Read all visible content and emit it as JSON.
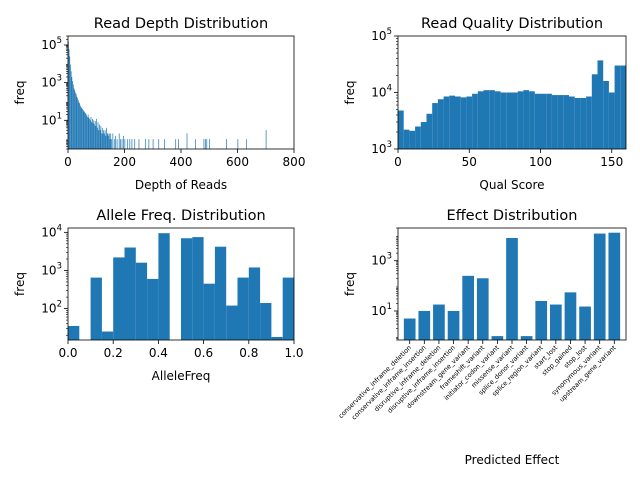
{
  "chart_data": [
    {
      "id": "depth",
      "type": "bar",
      "title": "Read Depth Distribution",
      "xlabel": "Depth of Reads",
      "ylabel": "freq",
      "xscale": "linear",
      "yscale": "log",
      "xlim": [
        0,
        800
      ],
      "ylim": [
        0.3,
        300000
      ],
      "xticks": [
        0,
        200,
        400,
        600,
        800
      ],
      "yticks": [
        10,
        1000,
        100000
      ],
      "color": "#1f77b4",
      "bin_width": 2.5,
      "x": [
        0,
        2.5,
        5,
        7.5,
        10,
        12.5,
        15,
        17.5,
        20,
        22.5,
        25,
        27.5,
        30,
        32.5,
        35,
        37.5,
        40,
        42.5,
        45,
        47.5,
        50,
        52.5,
        55,
        57.5,
        60,
        62.5,
        65,
        67.5,
        70,
        72.5,
        75,
        77.5,
        80,
        82.5,
        85,
        87.5,
        90,
        92.5,
        95,
        97.5,
        100,
        102.5,
        105,
        107.5,
        110,
        112.5,
        115,
        117.5,
        120,
        122.5,
        125,
        127.5,
        130,
        132.5,
        135,
        137.5,
        140,
        142.5,
        145,
        147.5,
        150,
        152.5,
        157.5,
        162.5,
        167.5,
        172.5,
        180,
        185,
        190,
        195,
        200,
        210,
        217.5,
        225,
        235,
        250,
        272.5,
        285,
        300,
        320,
        340,
        380,
        390,
        420,
        450,
        480,
        485,
        490,
        500,
        560,
        600,
        630,
        700
      ],
      "values": [
        150000,
        60000,
        25000,
        9000,
        4000,
        2000,
        1200,
        800,
        500,
        400,
        300,
        250,
        180,
        150,
        120,
        90,
        80,
        60,
        50,
        45,
        40,
        35,
        30,
        28,
        25,
        22,
        18,
        15,
        20,
        14,
        12,
        10,
        15,
        8,
        12,
        7,
        10,
        6,
        9,
        5,
        12,
        4,
        8,
        3,
        6,
        3,
        5,
        2,
        4,
        2,
        3,
        2,
        3,
        1.5,
        4,
        2,
        2,
        1.5,
        2,
        1,
        2,
        1,
        2,
        1,
        1.5,
        1,
        2,
        1,
        1,
        1.5,
        1,
        1,
        1,
        1,
        1,
        1,
        1,
        1,
        1,
        1,
        1,
        1,
        1,
        2,
        1,
        1,
        1,
        1,
        1,
        1,
        1,
        1,
        3
      ]
    },
    {
      "id": "quality",
      "type": "bar",
      "title": "Read Quality Distribution",
      "xlabel": "Qual Score",
      "ylabel": "freq",
      "xscale": "linear",
      "yscale": "log",
      "xlim": [
        0,
        160
      ],
      "ylim": [
        1000,
        100000
      ],
      "xticks": [
        0,
        50,
        100,
        150
      ],
      "yticks": [
        1000,
        10000,
        100000
      ],
      "color": "#1f77b4",
      "bin_width": 4,
      "x": [
        0,
        4,
        8,
        12,
        16,
        20,
        24,
        28,
        32,
        36,
        40,
        44,
        48,
        52,
        56,
        60,
        64,
        68,
        72,
        76,
        80,
        84,
        88,
        92,
        96,
        100,
        104,
        108,
        112,
        116,
        120,
        124,
        128,
        132,
        136,
        140,
        144,
        148,
        152,
        156
      ],
      "values": [
        4800,
        2200,
        2100,
        2500,
        3000,
        4200,
        6500,
        7600,
        8500,
        8800,
        8500,
        8200,
        8500,
        9500,
        10500,
        11000,
        11000,
        10500,
        10000,
        10000,
        10000,
        10500,
        11000,
        10500,
        9500,
        9500,
        9500,
        9000,
        9000,
        9000,
        8500,
        8000,
        8000,
        8500,
        21000,
        37000,
        16000,
        10000,
        30000,
        30000
      ]
    },
    {
      "id": "allele",
      "type": "bar",
      "title": "Allele Freq. Distribution",
      "xlabel": "AlleleFreq",
      "ylabel": "freq",
      "xscale": "linear",
      "yscale": "log",
      "xlim": [
        0,
        1
      ],
      "ylim": [
        15,
        13000
      ],
      "xticks": [
        0.0,
        0.2,
        0.4,
        0.6,
        0.8,
        1.0
      ],
      "xtick_labels": [
        "0.0",
        "0.2",
        "0.4",
        "0.6",
        "0.8",
        "1.0"
      ],
      "yticks": [
        100,
        1000,
        10000
      ],
      "color": "#1f77b4",
      "bin_width": 0.05,
      "x": [
        0,
        0.05,
        0.1,
        0.15,
        0.2,
        0.25,
        0.3,
        0.35,
        0.4,
        0.45,
        0.5,
        0.55,
        0.6,
        0.65,
        0.7,
        0.75,
        0.8,
        0.85,
        0.9,
        0.95
      ],
      "values": [
        35,
        0,
        650,
        25,
        2200,
        4000,
        1600,
        600,
        9500,
        0,
        7000,
        7500,
        450,
        4200,
        120,
        650,
        1200,
        140,
        18,
        650
      ]
    },
    {
      "id": "effect",
      "type": "bar",
      "title": "Effect Distribution",
      "xlabel": "Predicted Effect",
      "ylabel": "freq",
      "yscale": "log",
      "ylim": [
        0.7,
        20000
      ],
      "yticks": [
        10,
        1000
      ],
      "color": "#1f77b4",
      "categories": [
        "conservative_inframe_deletion",
        "conservative_inframe_insertion",
        "disruptive_inframe_deletion",
        "disruptive_inframe_insertion",
        "downstream_gene_variant",
        "frameshift_variant",
        "initiator_codon_variant",
        "missense_variant",
        "splice_donor_variant",
        "splice_region_variant",
        "start_lost",
        "stop_gained",
        "stop_lost",
        "synonymous_variant",
        "upstream_gene_variant"
      ],
      "values": [
        5,
        10,
        18,
        10,
        250,
        200,
        1,
        8000,
        1,
        25,
        18,
        55,
        15,
        12000,
        13000
      ]
    }
  ]
}
